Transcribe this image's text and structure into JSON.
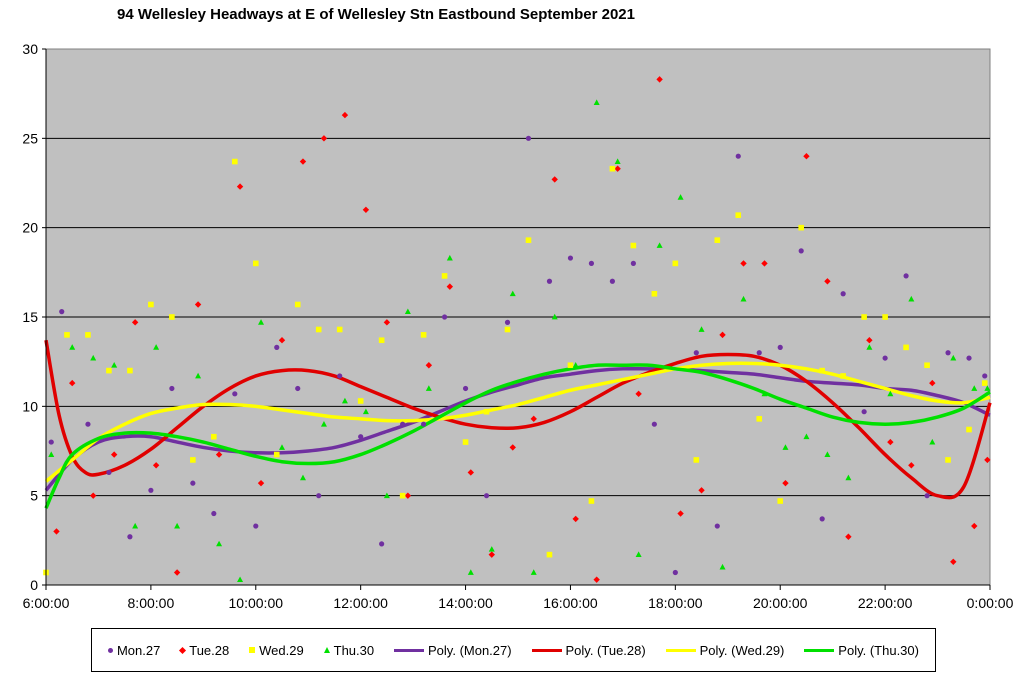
{
  "chart_data": {
    "type": "scatter",
    "title": "94 Wellesley Headways at E of Wellesley Stn Eastbound September 2021",
    "xlabel": "",
    "ylabel": "",
    "ylim": [
      0,
      30
    ],
    "xlim": [
      "6:00:00",
      "0:00:00"
    ],
    "yticks": [
      "0",
      "5",
      "10",
      "15",
      "20",
      "25",
      "30"
    ],
    "xticks": [
      "6:00:00",
      "8:00:00",
      "10:00:00",
      "12:00:00",
      "14:00:00",
      "16:00:00",
      "18:00:00",
      "20:00:00",
      "22:00:00",
      "0:00:00"
    ],
    "grid": "horizontal",
    "legend_position": "bottom",
    "series": [
      {
        "name": "Mon.27",
        "marker": "circle",
        "color": "#7030a0",
        "x": [
          6.1,
          6.3,
          6.8,
          7.2,
          7.6,
          8.0,
          8.4,
          8.8,
          9.2,
          9.6,
          10.0,
          10.4,
          10.8,
          11.2,
          11.6,
          12.0,
          12.4,
          12.8,
          13.2,
          13.6,
          14.0,
          14.4,
          14.8,
          15.2,
          15.6,
          16.0,
          16.4,
          16.8,
          17.2,
          17.6,
          18.0,
          18.4,
          18.8,
          19.2,
          19.6,
          20.0,
          20.4,
          20.8,
          21.2,
          21.6,
          22.0,
          22.4,
          22.8,
          23.2,
          23.6,
          23.9
        ],
        "y": [
          8.0,
          15.3,
          9.0,
          6.3,
          2.7,
          5.3,
          11.0,
          5.7,
          4.0,
          10.7,
          3.3,
          13.3,
          11.0,
          5.0,
          11.7,
          8.3,
          2.3,
          9.0,
          9.0,
          15.0,
          11.0,
          5.0,
          14.7,
          25.0,
          17.0,
          18.3,
          18.0,
          17.0,
          18.0,
          9.0,
          0.7,
          13.0,
          3.3,
          24.0,
          13.0,
          13.3,
          18.7,
          3.7,
          16.3,
          9.7,
          12.7,
          17.3,
          5.0,
          13.0,
          12.7,
          11.7
        ]
      },
      {
        "name": "Tue.28",
        "marker": "diamond",
        "color": "#ff0000",
        "x": [
          6.2,
          6.5,
          6.9,
          7.3,
          7.7,
          8.1,
          8.5,
          8.9,
          9.3,
          9.7,
          10.1,
          10.5,
          10.9,
          11.3,
          11.7,
          12.1,
          12.5,
          12.9,
          13.3,
          13.7,
          14.1,
          14.5,
          14.9,
          15.3,
          15.7,
          16.1,
          16.5,
          16.9,
          17.3,
          17.7,
          18.1,
          18.5,
          18.9,
          19.3,
          19.7,
          20.1,
          20.5,
          20.9,
          21.3,
          21.7,
          22.1,
          22.5,
          22.9,
          23.3,
          23.7,
          23.95
        ],
        "y": [
          3.0,
          11.3,
          5.0,
          7.3,
          14.7,
          6.7,
          0.7,
          15.7,
          7.3,
          22.3,
          5.7,
          13.7,
          23.7,
          25.0,
          26.3,
          21.0,
          14.7,
          5.0,
          12.3,
          16.7,
          6.3,
          1.7,
          7.7,
          9.3,
          22.7,
          3.7,
          0.3,
          23.3,
          10.7,
          28.3,
          4.0,
          5.3,
          14.0,
          18.0,
          18.0,
          5.7,
          24.0,
          17.0,
          2.7,
          13.7,
          8.0,
          6.7,
          11.3,
          1.3,
          3.3,
          7.0
        ]
      },
      {
        "name": "Wed.29",
        "marker": "square",
        "color": "#ffff00",
        "x": [
          6.0,
          6.4,
          6.8,
          7.2,
          7.6,
          8.0,
          8.4,
          8.8,
          9.2,
          9.6,
          10.0,
          10.4,
          10.8,
          11.2,
          11.6,
          12.0,
          12.4,
          12.8,
          13.2,
          13.6,
          14.0,
          14.4,
          14.8,
          15.2,
          15.6,
          16.0,
          16.4,
          16.8,
          17.2,
          17.6,
          18.0,
          18.4,
          18.8,
          19.2,
          19.6,
          20.0,
          20.4,
          20.8,
          21.2,
          21.6,
          22.0,
          22.4,
          22.8,
          23.2,
          23.6,
          23.9
        ],
        "y": [
          0.7,
          14.0,
          14.0,
          12.0,
          12.0,
          15.7,
          15.0,
          7.0,
          8.3,
          23.7,
          18.0,
          7.3,
          15.7,
          14.3,
          14.3,
          10.3,
          13.7,
          5.0,
          14.0,
          17.3,
          8.0,
          9.7,
          14.3,
          19.3,
          1.7,
          12.3,
          4.7,
          23.3,
          19.0,
          16.3,
          18.0,
          7.0,
          19.3,
          20.7,
          9.3,
          4.7,
          20.0,
          12.0,
          11.7,
          15.0,
          15.0,
          13.3,
          12.3,
          7.0,
          8.7,
          11.3
        ]
      },
      {
        "name": "Thu.30",
        "marker": "triangle",
        "color": "#00e000",
        "x": [
          6.1,
          6.5,
          6.9,
          7.3,
          7.7,
          8.1,
          8.5,
          8.9,
          9.3,
          9.7,
          10.1,
          10.5,
          10.9,
          11.3,
          11.7,
          12.1,
          12.5,
          12.9,
          13.3,
          13.7,
          14.1,
          14.5,
          14.9,
          15.3,
          15.7,
          16.1,
          16.5,
          16.9,
          17.3,
          17.7,
          18.1,
          18.5,
          18.9,
          19.3,
          19.7,
          20.1,
          20.5,
          20.9,
          21.3,
          21.7,
          22.1,
          22.5,
          22.9,
          23.3,
          23.7,
          23.95
        ],
        "y": [
          7.3,
          13.3,
          12.7,
          12.3,
          3.3,
          13.3,
          3.3,
          11.7,
          2.3,
          0.3,
          14.7,
          7.7,
          6.0,
          9.0,
          10.3,
          9.7,
          5.0,
          15.3,
          11.0,
          18.3,
          0.7,
          2.0,
          16.3,
          0.7,
          15.0,
          12.3,
          27.0,
          23.7,
          1.7,
          19.0,
          21.7,
          14.3,
          1.0,
          16.0,
          10.7,
          7.7,
          8.3,
          7.3,
          6.0,
          13.3,
          10.7,
          16.0,
          8.0,
          12.7,
          11.0,
          11.0
        ]
      }
    ],
    "trendlines": [
      {
        "name": "Poly. (Mon.27)",
        "color": "#7030a0",
        "x": [
          6,
          6.5,
          7,
          7.5,
          8,
          8.5,
          9,
          9.5,
          10,
          10.5,
          11,
          11.5,
          12,
          12.5,
          13,
          13.5,
          14,
          14.5,
          15,
          15.5,
          16,
          16.5,
          17,
          17.5,
          18,
          18.5,
          19,
          19.5,
          20,
          20.5,
          21,
          21.5,
          22,
          22.5,
          23,
          23.5,
          24
        ],
        "y": [
          5.3,
          7.0,
          8.0,
          8.3,
          8.3,
          8.0,
          7.7,
          7.5,
          7.4,
          7.4,
          7.5,
          7.7,
          8.1,
          8.6,
          9.1,
          9.7,
          10.3,
          10.8,
          11.2,
          11.6,
          11.8,
          12.0,
          12.1,
          12.1,
          12.1,
          12.0,
          11.9,
          11.8,
          11.6,
          11.4,
          11.3,
          11.2,
          11.0,
          10.9,
          10.6,
          10.2,
          9.5
        ]
      },
      {
        "name": "Poly. (Tue.28)",
        "color": "#e00000",
        "x": [
          6,
          6.25,
          6.5,
          6.75,
          7,
          7.5,
          8,
          8.5,
          9,
          9.5,
          10,
          10.5,
          11,
          11.5,
          12,
          12.5,
          13,
          13.5,
          14,
          14.5,
          15,
          15.5,
          16,
          16.5,
          17,
          17.5,
          18,
          18.5,
          19,
          19.5,
          20,
          20.5,
          21,
          21.5,
          22,
          22.5,
          23,
          23.5,
          24
        ],
        "y": [
          13.7,
          9.5,
          7.2,
          6.3,
          6.2,
          6.7,
          7.6,
          8.8,
          10.0,
          11.0,
          11.7,
          12.0,
          12.0,
          11.7,
          11.1,
          10.5,
          9.9,
          9.4,
          9.0,
          8.8,
          8.8,
          9.1,
          9.7,
          10.5,
          11.3,
          11.9,
          12.4,
          12.8,
          12.9,
          12.8,
          12.3,
          11.4,
          10.2,
          8.8,
          7.3,
          6.0,
          5.0,
          5.5,
          10.2
        ]
      },
      {
        "name": "Poly. (Wed.29)",
        "color": "#ffff00",
        "x": [
          6,
          6.5,
          7,
          7.5,
          8,
          8.5,
          9,
          9.5,
          10,
          10.5,
          11,
          11.5,
          12,
          12.5,
          13,
          13.5,
          14,
          14.5,
          15,
          15.5,
          16,
          16.5,
          17,
          17.5,
          18,
          18.5,
          19,
          19.5,
          20,
          20.5,
          21,
          21.5,
          22,
          22.5,
          23,
          23.5,
          24
        ],
        "y": [
          5.8,
          7.0,
          8.2,
          9.0,
          9.6,
          9.9,
          10.1,
          10.1,
          10.0,
          9.8,
          9.6,
          9.4,
          9.3,
          9.2,
          9.2,
          9.3,
          9.5,
          9.8,
          10.1,
          10.5,
          10.9,
          11.2,
          11.5,
          11.8,
          12.1,
          12.3,
          12.4,
          12.4,
          12.3,
          12.1,
          11.8,
          11.4,
          11.0,
          10.6,
          10.3,
          10.2,
          10.5
        ]
      },
      {
        "name": "Poly. (Thu.30)",
        "color": "#00e000",
        "x": [
          6,
          6.25,
          6.5,
          7,
          7.5,
          8,
          8.5,
          9,
          9.5,
          10,
          10.5,
          11,
          11.5,
          12,
          12.5,
          13,
          13.5,
          14,
          14.5,
          15,
          15.5,
          16,
          16.5,
          17,
          17.5,
          18,
          18.5,
          19,
          19.5,
          20,
          20.5,
          21,
          21.5,
          22,
          22.5,
          23,
          23.5,
          24
        ],
        "y": [
          4.3,
          6.0,
          7.3,
          8.2,
          8.5,
          8.5,
          8.3,
          8.0,
          7.6,
          7.2,
          6.9,
          6.8,
          6.9,
          7.3,
          7.9,
          8.6,
          9.4,
          10.2,
          10.9,
          11.4,
          11.8,
          12.1,
          12.3,
          12.3,
          12.3,
          12.1,
          11.9,
          11.5,
          11.0,
          10.4,
          9.9,
          9.4,
          9.1,
          9.0,
          9.1,
          9.4,
          9.9,
          10.8
        ]
      }
    ]
  }
}
